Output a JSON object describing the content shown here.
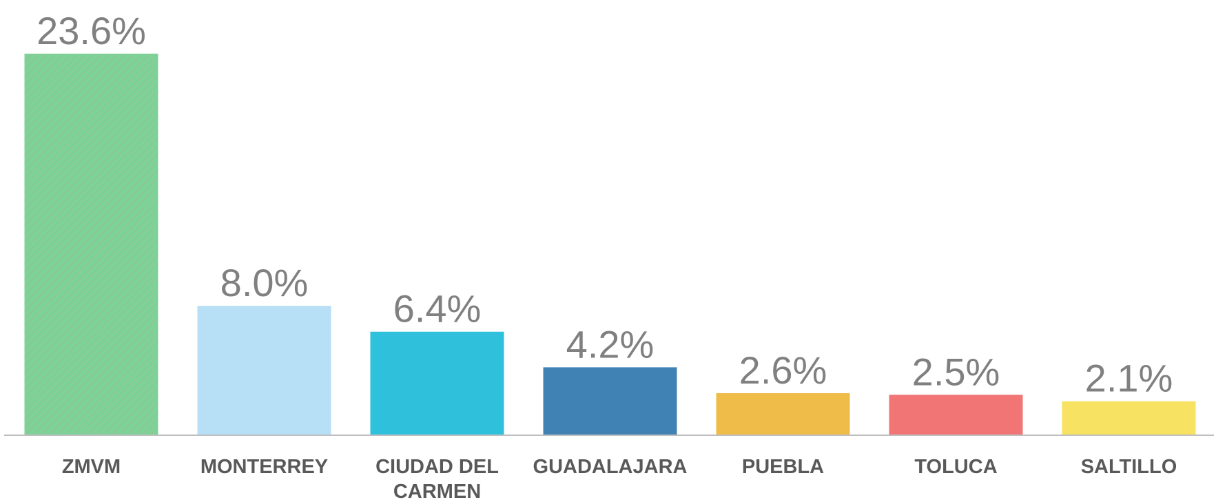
{
  "chart_data": {
    "type": "bar",
    "categories": [
      "ZMVM",
      "MONTERREY",
      "CIUDAD DEL CARMEN",
      "GUADALAJARA",
      "PUEBLA",
      "TOLUCA",
      "SALTILLO"
    ],
    "values": [
      23.6,
      8.0,
      6.4,
      4.2,
      2.6,
      2.5,
      2.1
    ],
    "value_labels": [
      "23.6%",
      "8.0%",
      "6.4%",
      "4.2%",
      "2.6%",
      "2.5%",
      "2.1%"
    ],
    "colors": [
      "#7dd396",
      "#b7dff5",
      "#2fc1dc",
      "#4182b5",
      "#efbc4a",
      "#f07574",
      "#f8e262"
    ],
    "hatched": [
      true,
      false,
      false,
      false,
      false,
      false,
      false
    ],
    "ylim": [
      0,
      25
    ]
  }
}
